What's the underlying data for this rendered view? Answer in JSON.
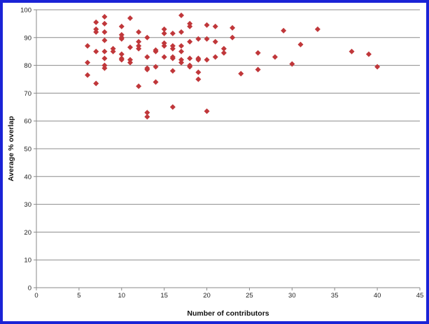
{
  "chart_data": {
    "type": "scatter",
    "xlabel": "Number of contributors",
    "ylabel": "Average % overlap",
    "xlim": [
      0,
      45
    ],
    "ylim": [
      0,
      100
    ],
    "x_ticks": [
      0,
      5,
      10,
      15,
      20,
      25,
      30,
      35,
      40,
      45
    ],
    "y_ticks": [
      0,
      10,
      20,
      30,
      40,
      50,
      60,
      70,
      80,
      90,
      100
    ],
    "grid": "horizontal",
    "legend": "none",
    "marker_color": "#c0373a",
    "points": [
      [
        6,
        87
      ],
      [
        6,
        81
      ],
      [
        6,
        76.5
      ],
      [
        7,
        95.5
      ],
      [
        7,
        93
      ],
      [
        7,
        92
      ],
      [
        7,
        85
      ],
      [
        7,
        73.5
      ],
      [
        8,
        97.5
      ],
      [
        8,
        95
      ],
      [
        8,
        92
      ],
      [
        8,
        89
      ],
      [
        8,
        85
      ],
      [
        8,
        82.5
      ],
      [
        8,
        80
      ],
      [
        8,
        79
      ],
      [
        9,
        86
      ],
      [
        9,
        85
      ],
      [
        10,
        94
      ],
      [
        10,
        91
      ],
      [
        10,
        90
      ],
      [
        10,
        89.5
      ],
      [
        10,
        84
      ],
      [
        10,
        82.5
      ],
      [
        10,
        82
      ],
      [
        11,
        97
      ],
      [
        11,
        86.5
      ],
      [
        11,
        82
      ],
      [
        11,
        81
      ],
      [
        12,
        92
      ],
      [
        12,
        88.5
      ],
      [
        12,
        87
      ],
      [
        12,
        86
      ],
      [
        12,
        72.5
      ],
      [
        13,
        90
      ],
      [
        13,
        83
      ],
      [
        13,
        79
      ],
      [
        13,
        78.5
      ],
      [
        13,
        63
      ],
      [
        13,
        61.5
      ],
      [
        14,
        85
      ],
      [
        14,
        85.5
      ],
      [
        14,
        79.5
      ],
      [
        14,
        74
      ],
      [
        15,
        93
      ],
      [
        15,
        91.5
      ],
      [
        15,
        88
      ],
      [
        15,
        87
      ],
      [
        15,
        83
      ],
      [
        16,
        91.5
      ],
      [
        16,
        87
      ],
      [
        16,
        86
      ],
      [
        16,
        83
      ],
      [
        16,
        82.5
      ],
      [
        16,
        78
      ],
      [
        16,
        65
      ],
      [
        17,
        98
      ],
      [
        17,
        92
      ],
      [
        17,
        87
      ],
      [
        17,
        85
      ],
      [
        17,
        82
      ],
      [
        17,
        81
      ],
      [
        18,
        95
      ],
      [
        18,
        94
      ],
      [
        18,
        88.5
      ],
      [
        18,
        82.5
      ],
      [
        18,
        80
      ],
      [
        18,
        79.5
      ],
      [
        19,
        89.5
      ],
      [
        19,
        82.5
      ],
      [
        19,
        82
      ],
      [
        19,
        77.5
      ],
      [
        19,
        75
      ],
      [
        20,
        94.5
      ],
      [
        20,
        89.5
      ],
      [
        20,
        82
      ],
      [
        20,
        63.5
      ],
      [
        21,
        94
      ],
      [
        21,
        88.5
      ],
      [
        21,
        83
      ],
      [
        22,
        86
      ],
      [
        22,
        84.5
      ],
      [
        23,
        93.5
      ],
      [
        23,
        90
      ],
      [
        24,
        77
      ],
      [
        26,
        84.5
      ],
      [
        26,
        78.5
      ],
      [
        28,
        83
      ],
      [
        29,
        92.5
      ],
      [
        30,
        80.5
      ],
      [
        31,
        87.5
      ],
      [
        33,
        93
      ],
      [
        37,
        85
      ],
      [
        39,
        84
      ],
      [
        40,
        79.5
      ]
    ]
  }
}
